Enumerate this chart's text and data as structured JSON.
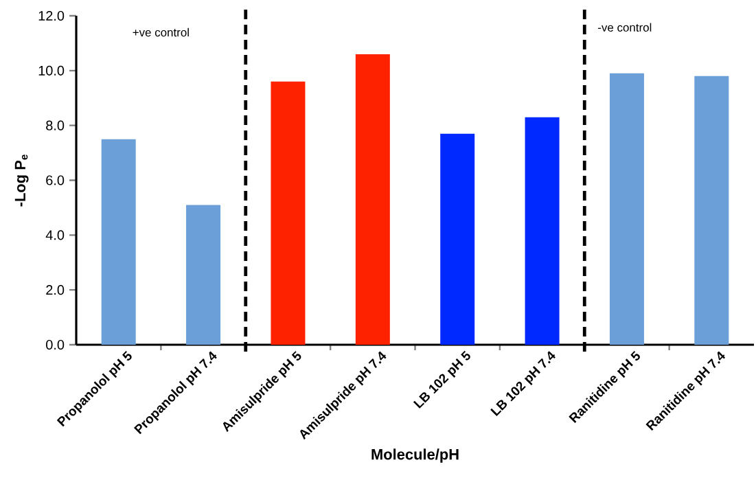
{
  "chart_data": {
    "type": "bar",
    "xlabel": "Molecule/pH",
    "ylabel": "-Log P$_{e}$",
    "categories": [
      "Propanolol pH 5",
      "Propanolol pH 7.4",
      "Amisulpride pH 5",
      "Amisulpride pH 7.4",
      "LB 102 pH 5",
      "LB 102 pH 7.4",
      "Ranitidine pH 5",
      "Ranitidine pH 7.4"
    ],
    "values": [
      7.5,
      5.1,
      9.6,
      10.6,
      7.7,
      8.3,
      9.9,
      9.8
    ],
    "colors": [
      "#6a9fd8",
      "#6a9fd8",
      "#ff2200",
      "#ff2200",
      "#0029ff",
      "#0029ff",
      "#6a9fd8",
      "#6a9fd8"
    ],
    "ylim": [
      0,
      12
    ],
    "yticks": [
      {
        "value": 0,
        "label": "0.0"
      },
      {
        "value": 2,
        "label": "2.0"
      },
      {
        "value": 4,
        "label": "4.0"
      },
      {
        "value": 6,
        "label": "6.0"
      },
      {
        "value": 8,
        "label": "8.0"
      },
      {
        "value": 10,
        "label": "10.0"
      },
      {
        "value": 12,
        "label": "12.0"
      }
    ],
    "annotations": [
      "+ve control",
      "-ve control"
    ]
  }
}
